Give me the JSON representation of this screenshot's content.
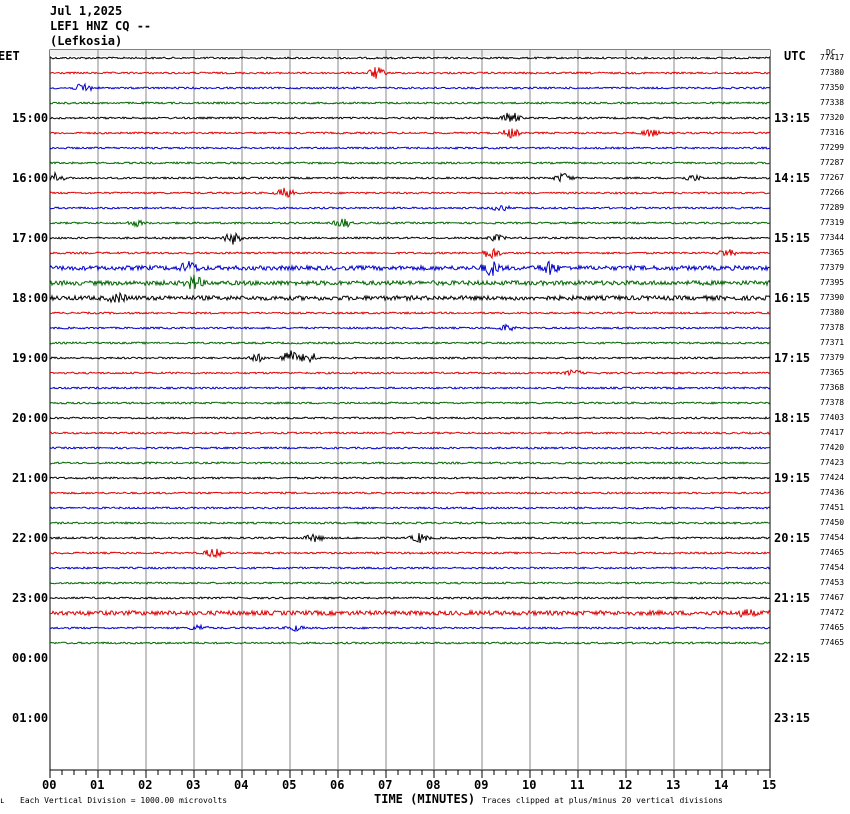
{
  "header": {
    "date": "Jul 1,2025",
    "station": "LEF1 HNZ CQ --",
    "location": "(Lefkosia)"
  },
  "left_tz": "EET",
  "right_tz": "UTC",
  "dc_label": "DC",
  "footer": {
    "logo": "ʟ",
    "scale": "Each Vertical Division = 1000.00 microvolts",
    "xlabel": "TIME (MINUTES)",
    "clip": "Traces clipped at plus/minus 20 vertical divisions"
  },
  "colors": {
    "black": "#000000",
    "red": "#dd0000",
    "blue": "#0000cc",
    "green": "#006600",
    "grid": "#888888"
  },
  "chart_data": {
    "type": "line",
    "title": "Jul 1,2025 LEF1 HNZ CQ -- (Lefkosia)",
    "xlabel": "TIME (MINUTES)",
    "x_ticks": [
      "00",
      "01",
      "02",
      "03",
      "04",
      "05",
      "06",
      "07",
      "08",
      "09",
      "10",
      "11",
      "12",
      "13",
      "14",
      "15"
    ],
    "xlim": [
      0,
      15
    ],
    "grid": true,
    "left_hour_labels": [
      "15:00",
      "16:00",
      "17:00",
      "18:00",
      "19:00",
      "20:00",
      "21:00",
      "22:00",
      "23:00",
      "00:00",
      "01:00"
    ],
    "right_hour_labels": [
      "13:15",
      "14:15",
      "15:15",
      "16:15",
      "17:15",
      "18:15",
      "19:15",
      "20:15",
      "21:15",
      "22:15",
      "23:15"
    ],
    "trace_colors": [
      "black",
      "red",
      "blue",
      "green"
    ],
    "dc_offsets": [
      77417,
      77380,
      77350,
      77338,
      77320,
      77316,
      77299,
      77287,
      77267,
      77266,
      77289,
      77319,
      77344,
      77365,
      77379,
      77395,
      77390,
      77380,
      77378,
      77371,
      77379,
      77365,
      77368,
      77378,
      77403,
      77417,
      77420,
      77423,
      77424,
      77436,
      77451,
      77450,
      77454,
      77465,
      77454,
      77453,
      77467,
      77472,
      77465,
      77465
    ],
    "events": [
      {
        "trace": 1,
        "minute": 6.8,
        "amp": 6
      },
      {
        "trace": 2,
        "minute": 0.7,
        "amp": 5
      },
      {
        "trace": 4,
        "minute": 9.6,
        "amp": 7
      },
      {
        "trace": 5,
        "minute": 9.6,
        "amp": 5
      },
      {
        "trace": 5,
        "minute": 12.5,
        "amp": 4
      },
      {
        "trace": 8,
        "minute": 0.1,
        "amp": 5
      },
      {
        "trace": 8,
        "minute": 10.7,
        "amp": 5
      },
      {
        "trace": 8,
        "minute": 13.4,
        "amp": 3
      },
      {
        "trace": 9,
        "minute": 4.9,
        "amp": 5
      },
      {
        "trace": 10,
        "minute": 9.4,
        "amp": 3
      },
      {
        "trace": 11,
        "minute": 1.8,
        "amp": 3
      },
      {
        "trace": 11,
        "minute": 6.1,
        "amp": 5
      },
      {
        "trace": 12,
        "minute": 3.8,
        "amp": 6
      },
      {
        "trace": 12,
        "minute": 9.3,
        "amp": 3
      },
      {
        "trace": 13,
        "minute": 9.2,
        "amp": 6
      },
      {
        "trace": 13,
        "minute": 14.1,
        "amp": 4
      },
      {
        "trace": 14,
        "minute": 2.9,
        "amp": 6
      },
      {
        "trace": 14,
        "minute": 9.2,
        "amp": 7
      },
      {
        "trace": 14,
        "minute": 10.4,
        "amp": 6
      },
      {
        "trace": 15,
        "minute": 3.0,
        "amp": 7
      },
      {
        "trace": 16,
        "minute": 1.4,
        "amp": 4
      },
      {
        "trace": 18,
        "minute": 9.5,
        "amp": 3
      },
      {
        "trace": 20,
        "minute": 5.0,
        "amp": 8
      },
      {
        "trace": 20,
        "minute": 5.4,
        "amp": 7
      },
      {
        "trace": 20,
        "minute": 4.3,
        "amp": 4
      },
      {
        "trace": 21,
        "minute": 10.9,
        "amp": 3
      },
      {
        "trace": 32,
        "minute": 5.5,
        "amp": 4
      },
      {
        "trace": 32,
        "minute": 7.7,
        "amp": 5
      },
      {
        "trace": 33,
        "minute": 3.4,
        "amp": 5
      },
      {
        "trace": 37,
        "minute": 14.5,
        "amp": 3
      },
      {
        "trace": 38,
        "minute": 3.1,
        "amp": 3
      },
      {
        "trace": 38,
        "minute": 5.1,
        "amp": 3
      }
    ],
    "noisy_traces": [
      14,
      15,
      16,
      37
    ]
  }
}
